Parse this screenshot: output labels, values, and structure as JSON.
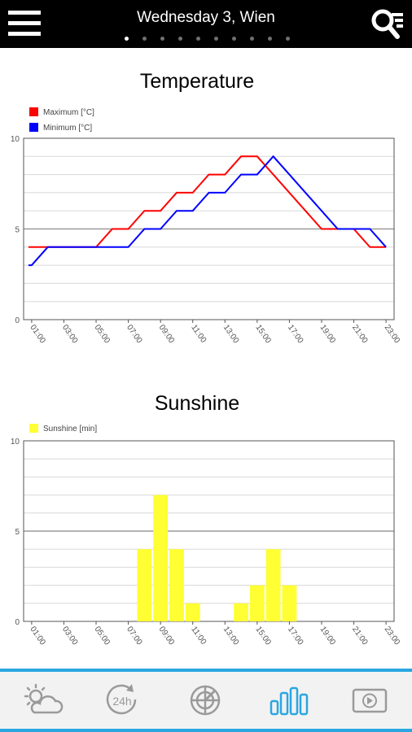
{
  "header": {
    "title": "Wednesday 3, Wien",
    "page_count": 10,
    "active_page": 0
  },
  "charts": {
    "temperature": {
      "title": "Temperature"
    },
    "sunshine": {
      "title": "Sunshine"
    }
  },
  "chart_data": [
    {
      "type": "line",
      "title": "Temperature",
      "x": [
        "01:00",
        "02:00",
        "03:00",
        "04:00",
        "05:00",
        "06:00",
        "07:00",
        "08:00",
        "09:00",
        "10:00",
        "11:00",
        "12:00",
        "13:00",
        "14:00",
        "15:00",
        "16:00",
        "17:00",
        "18:00",
        "19:00",
        "20:00",
        "21:00",
        "22:00",
        "23:00"
      ],
      "tick_labels": [
        "01:00",
        "03:00",
        "05:00",
        "07:00",
        "09:00",
        "11:00",
        "13:00",
        "15:00",
        "17:00",
        "19:00",
        "21:00",
        "23:00"
      ],
      "ylim": [
        0,
        10
      ],
      "y_ticks": [
        0,
        5,
        10
      ],
      "grid": true,
      "legend": "top-left",
      "series": [
        {
          "name": "Maximum [°C]",
          "color": "#ff0000",
          "values": [
            4,
            4,
            4,
            4,
            4,
            5,
            5,
            6,
            6,
            7,
            7,
            8,
            8,
            9,
            9,
            8,
            7,
            6,
            5,
            5,
            5,
            4,
            4
          ]
        },
        {
          "name": "Minimum [°C]",
          "color": "#0000ff",
          "values": [
            3,
            4,
            4,
            4,
            4,
            4,
            4,
            5,
            5,
            6,
            6,
            7,
            7,
            8,
            8,
            9,
            8,
            7,
            6,
            5,
            5,
            5,
            4
          ]
        }
      ]
    },
    {
      "type": "bar",
      "title": "Sunshine",
      "x": [
        "01:00",
        "02:00",
        "03:00",
        "04:00",
        "05:00",
        "06:00",
        "07:00",
        "08:00",
        "09:00",
        "10:00",
        "11:00",
        "12:00",
        "13:00",
        "14:00",
        "15:00",
        "16:00",
        "17:00",
        "18:00",
        "19:00",
        "20:00",
        "21:00",
        "22:00",
        "23:00"
      ],
      "tick_labels": [
        "01:00",
        "03:00",
        "05:00",
        "07:00",
        "09:00",
        "11:00",
        "13:00",
        "15:00",
        "17:00",
        "19:00",
        "21:00",
        "23:00"
      ],
      "ylim": [
        0,
        10
      ],
      "y_ticks": [
        0,
        5,
        10
      ],
      "grid": true,
      "legend": "top-left",
      "series": [
        {
          "name": "Sunshine [min]",
          "color": "#ffff33",
          "values": [
            0,
            0,
            0,
            0,
            0,
            0,
            0,
            4,
            7,
            4,
            1,
            0,
            0,
            1,
            2,
            4,
            2,
            0,
            0,
            0,
            0,
            0,
            0
          ]
        }
      ]
    }
  ],
  "bottom_nav": {
    "items": [
      {
        "name": "forecast",
        "icon": "weather-cloud-sun-icon",
        "active": false
      },
      {
        "name": "24h",
        "icon": "24h-icon",
        "label": "24h",
        "active": false
      },
      {
        "name": "radar",
        "icon": "radar-icon",
        "active": false
      },
      {
        "name": "charts",
        "icon": "bar-chart-icon",
        "active": true
      },
      {
        "name": "video",
        "icon": "video-play-icon",
        "active": false
      }
    ],
    "accent": "#2aa6e0",
    "inactive_color": "#9a9a9a"
  }
}
